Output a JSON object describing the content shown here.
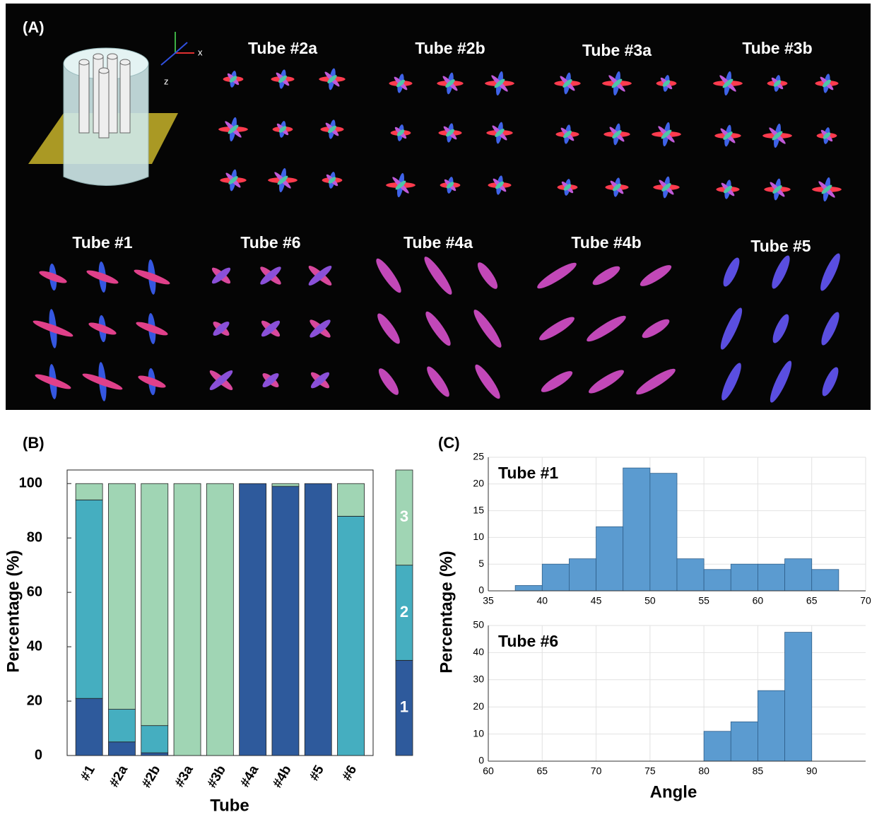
{
  "panel_a": {
    "label": "(A)",
    "axis_labels": [
      "x",
      "z"
    ],
    "tube_labels": [
      "Tube #2a",
      "Tube #2b",
      "Tube #3a",
      "Tube #3b",
      "Tube #1",
      "Tube #6",
      "Tube #4a",
      "Tube #4b",
      "Tube #5"
    ]
  },
  "chart_data": [
    {
      "type": "stacked_bar",
      "panel_label": "(B)",
      "xlabel": "Tube",
      "ylabel": "Percentage (%)",
      "categories": [
        "#1",
        "#2a",
        "#2b",
        "#3a",
        "#3b",
        "#4a",
        "#4b",
        "#5",
        "#6"
      ],
      "series": [
        {
          "name": "1",
          "color": "#2e5a9c",
          "values": [
            21,
            5,
            1,
            0,
            0,
            100,
            99,
            100,
            0
          ]
        },
        {
          "name": "2",
          "color": "#45aec0",
          "values": [
            73,
            12,
            10,
            0,
            0,
            0,
            0,
            0,
            88
          ]
        },
        {
          "name": "3",
          "color": "#a0d5b4",
          "values": [
            6,
            83,
            89,
            100,
            100,
            0,
            1,
            0,
            12
          ]
        }
      ],
      "ylim": [
        0,
        105
      ],
      "yticks": [
        0,
        20,
        40,
        60,
        80,
        100
      ]
    },
    {
      "type": "histogram",
      "panel_label": "(C)",
      "annotation": "Tube #1",
      "ylabel": "Percentage (%)",
      "color": "#5b9bd0",
      "bins": [
        37.5,
        40,
        42.5,
        45,
        47.5,
        50,
        52.5,
        55,
        57.5,
        60,
        62.5,
        65,
        67.5
      ],
      "values": [
        1,
        5,
        6,
        12,
        23,
        22,
        6,
        4,
        5,
        5,
        6,
        4
      ],
      "xlim": [
        35,
        70
      ],
      "xticks": [
        35,
        40,
        45,
        50,
        55,
        60,
        65,
        70
      ],
      "ylim": [
        0,
        25
      ],
      "yticks": [
        0,
        5,
        10,
        15,
        20,
        25
      ],
      "grid": true
    },
    {
      "type": "histogram",
      "annotation": "Tube #6",
      "xlabel": "Angle",
      "color": "#5b9bd0",
      "bins": [
        80,
        82.5,
        85,
        87.5,
        90
      ],
      "values": [
        11,
        14.5,
        26,
        47.5
      ],
      "xlim": [
        60,
        95
      ],
      "xticks": [
        60,
        65,
        70,
        75,
        80,
        85,
        90
      ],
      "ylim": [
        0,
        50
      ],
      "yticks": [
        0,
        10,
        20,
        30,
        40,
        50
      ],
      "grid": true
    }
  ]
}
